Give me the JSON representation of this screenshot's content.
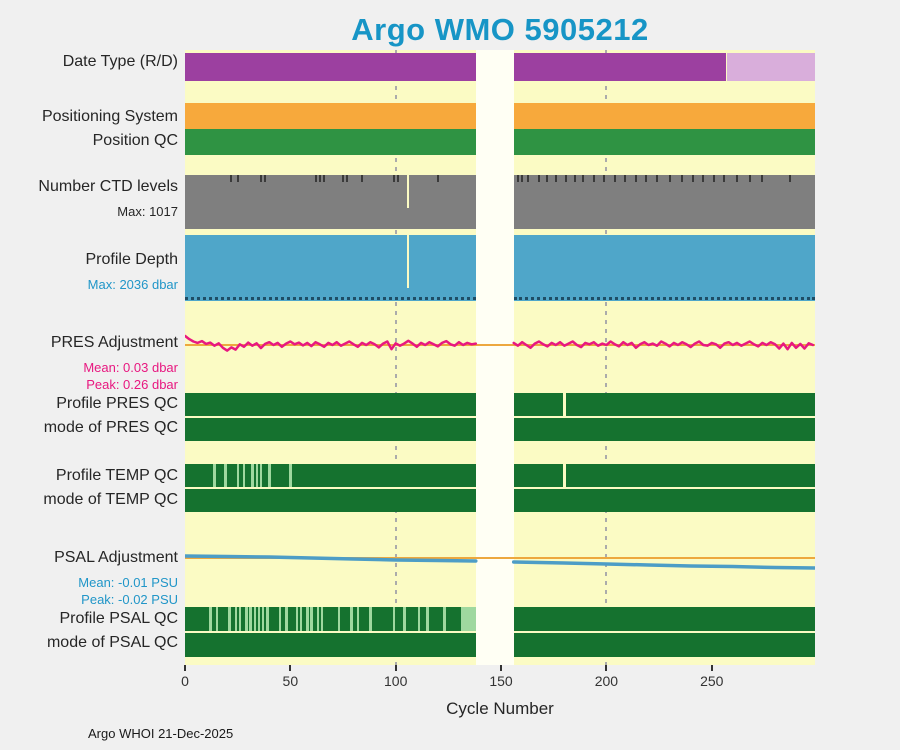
{
  "title": "Argo WMO 5905212",
  "footer": "Argo WHOI 21-Dec-2025",
  "colors": {
    "title": "#1795c6",
    "background": "#f0f0f0",
    "plot_bg": "#fbfbc4",
    "gap_band": "#fffff4",
    "gridline": "#ababab",
    "purple": "#9c40a0",
    "purple_light": "#d9aedb",
    "orange": "#f7a93c",
    "green": "#2f9343",
    "dark_green": "#15722f",
    "light_green": "#9fd89f",
    "gray": "#7f7f7f",
    "blue": "#4fa6c9",
    "magenta": "#e81880",
    "ref_orange": "#eda83e",
    "psal_blue": "#4d9dc6",
    "sub_blue": "#2196c8",
    "level_tick": "#3a3a3a",
    "depth_dotted": "#1f4e66",
    "axis_tick": "#333333"
  },
  "axis": {
    "xlabel": "Cycle Number",
    "xlim": [
      0,
      299
    ],
    "ticks": [
      0,
      50,
      100,
      150,
      200,
      250
    ],
    "gridlines_x": [
      100,
      200
    ],
    "gap": {
      "start": 138,
      "end": 156
    }
  },
  "labels": {
    "date_type": {
      "text": "Date Type (R/D)"
    },
    "positioning_system": {
      "text": "Positioning System"
    },
    "position_qc": {
      "text": "Position QC"
    },
    "ctd_levels": {
      "text": "Number CTD levels",
      "sub": "Max: 1017"
    },
    "profile_depth": {
      "text": "Profile Depth",
      "sub": "Max: 2036 dbar"
    },
    "pres_adjustment": {
      "text": "PRES Adjustment",
      "mean": "Mean: 0.03 dbar",
      "peak": "Peak: 0.26 dbar"
    },
    "profile_pres_qc": {
      "text": "Profile PRES QC"
    },
    "mode_pres_qc": {
      "text": "mode of PRES QC"
    },
    "profile_temp_qc": {
      "text": "Profile TEMP QC"
    },
    "mode_temp_qc": {
      "text": "mode of TEMP QC"
    },
    "psal_adjustment": {
      "text": "PSAL Adjustment",
      "mean": "Mean: -0.01 PSU",
      "peak": "Peak: -0.02 PSU"
    },
    "profile_psal_qc": {
      "text": "Profile PSAL QC"
    },
    "mode_psal_qc": {
      "text": "mode of PSAL QC"
    }
  },
  "chart_data": [
    {
      "id": "date_type",
      "type": "bar",
      "segments": [
        {
          "start": 0,
          "end": 138,
          "color": "purple"
        },
        {
          "start": 156,
          "end": 257,
          "color": "purple"
        },
        {
          "start": 257,
          "end": 299,
          "color": "purple_light"
        }
      ]
    },
    {
      "id": "positioning_system",
      "type": "bar",
      "segments": [
        {
          "start": 0,
          "end": 138,
          "color": "orange"
        },
        {
          "start": 156,
          "end": 299,
          "color": "orange"
        }
      ]
    },
    {
      "id": "position_qc",
      "type": "bar",
      "segments": [
        {
          "start": 0,
          "end": 138,
          "color": "green"
        },
        {
          "start": 156,
          "end": 299,
          "color": "green"
        }
      ]
    },
    {
      "id": "ctd_levels",
      "type": "bar",
      "max_levels": 1017,
      "segments": [
        {
          "start": 0,
          "end": 138,
          "color": "gray"
        },
        {
          "start": 156,
          "end": 299,
          "color": "gray"
        }
      ],
      "level_ticks": [
        22,
        25,
        36,
        38,
        62,
        64,
        66,
        75,
        77,
        84,
        99,
        101,
        120,
        158,
        160,
        163,
        168,
        172,
        176,
        181,
        185,
        189,
        194,
        199,
        204,
        209,
        214,
        219,
        224,
        230,
        236,
        241,
        246,
        251,
        256,
        262,
        268,
        274,
        287
      ],
      "notches": [
        {
          "cycle": 106,
          "frac": 0.62
        }
      ]
    },
    {
      "id": "profile_depth",
      "type": "bar",
      "max_depth": "2036 dbar",
      "dotted_bottom": true,
      "segments": [
        {
          "start": 0,
          "end": 138,
          "color": "blue"
        },
        {
          "start": 156,
          "end": 299,
          "color": "blue"
        }
      ],
      "notches": [
        {
          "cycle": 106,
          "frac": 0.8
        }
      ]
    },
    {
      "id": "pres_adjustment",
      "type": "line",
      "units": "dbar",
      "mean": 0.03,
      "peak": 0.26,
      "color": "magenta",
      "ref_color": "ref_orange",
      "ref_value": 0,
      "series": [
        {
          "x0": 0,
          "dx": 2,
          "values": [
            0.26,
            0.17,
            0.1,
            0.06,
            0.11,
            0.03,
            0.07,
            -0.02,
            0.05,
            -0.08,
            -0.16,
            -0.07,
            -0.13,
            0.02,
            -0.05,
            0.07,
            -0.02,
            0.05,
            -0.09,
            0.03,
            0.08,
            0.0,
            0.06,
            -0.05,
            0.04,
            0.1,
            0.02,
            0.07,
            -0.01,
            0.06,
            -0.03,
            0.08,
            0.02,
            -0.05,
            0.06,
            0.0,
            0.08,
            -0.02,
            0.04,
            0.1,
            0.02,
            -0.05,
            0.06,
            0.0,
            0.08,
            0.02,
            -0.07,
            0.04,
            0.1,
            -0.12,
            0.05,
            -0.02,
            0.04,
            0.12,
            0.04,
            -0.05,
            0.06,
            0.0,
            0.08,
            0.02,
            -0.04,
            0.06,
            0.11,
            0.02,
            -0.02,
            0.08,
            0.0,
            0.06,
            0.02,
            0.04
          ]
        },
        {
          "x0": 156,
          "dx": 2,
          "values": [
            0.06,
            -0.02,
            0.08,
            0.0,
            -0.08,
            0.04,
            0.1,
            0.02,
            -0.04,
            0.06,
            0.0,
            0.08,
            -0.02,
            0.04,
            0.1,
            0.0,
            -0.06,
            0.06,
            0.02,
            0.08,
            -0.02,
            0.04,
            0.0,
            0.1,
            0.02,
            -0.04,
            0.08,
            0.0,
            0.06,
            -0.08,
            0.02,
            0.08,
            0.0,
            0.04,
            -0.02,
            0.1,
            0.04,
            -0.04,
            0.06,
            0.0,
            0.08,
            0.02,
            -0.06,
            0.04,
            0.1,
            0.0,
            -0.02,
            0.06,
            0.02,
            -0.08,
            0.04,
            0.08,
            0.0,
            0.06,
            -0.02,
            0.04,
            0.1,
            0.02,
            -0.04,
            0.06,
            0.0,
            0.08,
            0.02,
            -0.1,
            0.04,
            -0.12,
            0.06,
            -0.08,
            0.03,
            -0.1,
            0.05,
            0.0
          ]
        }
      ]
    },
    {
      "id": "profile_pres_qc",
      "type": "bar",
      "segments": [
        {
          "start": 0,
          "end": 138,
          "color": "dark_green"
        },
        {
          "start": 156,
          "end": 299,
          "color": "dark_green"
        }
      ],
      "gaps": [
        180
      ]
    },
    {
      "id": "mode_pres_qc",
      "type": "bar",
      "segments": [
        {
          "start": 0,
          "end": 138,
          "color": "dark_green"
        },
        {
          "start": 156,
          "end": 299,
          "color": "dark_green"
        }
      ]
    },
    {
      "id": "profile_temp_qc",
      "type": "bar",
      "segments": [
        {
          "start": 0,
          "end": 138,
          "color": "dark_green"
        },
        {
          "start": 156,
          "end": 299,
          "color": "dark_green"
        }
      ],
      "stripes": [
        14,
        19,
        25,
        28,
        32,
        34,
        36,
        40,
        50
      ],
      "stripe_color": "light_green",
      "gaps": [
        180
      ]
    },
    {
      "id": "mode_temp_qc",
      "type": "bar",
      "segments": [
        {
          "start": 0,
          "end": 138,
          "color": "dark_green"
        },
        {
          "start": 156,
          "end": 299,
          "color": "dark_green"
        }
      ]
    },
    {
      "id": "psal_adjustment",
      "type": "line",
      "units": "PSU",
      "mean": -0.01,
      "peak": -0.02,
      "color": "psal_blue",
      "ref_color": "ref_orange",
      "ref_value": 0,
      "series": [
        {
          "x": [
            0,
            20,
            40,
            60,
            80,
            100,
            120,
            138
          ],
          "y": [
            0.004,
            0.003,
            0.002,
            0.0,
            -0.002,
            -0.004,
            -0.005,
            -0.006
          ]
        },
        {
          "x": [
            156,
            180,
            200,
            220,
            240,
            260,
            280,
            299
          ],
          "y": [
            -0.008,
            -0.01,
            -0.012,
            -0.014,
            -0.016,
            -0.017,
            -0.019,
            -0.02
          ]
        }
      ]
    },
    {
      "id": "profile_psal_qc",
      "type": "bar",
      "segments": [
        {
          "start": 0,
          "end": 138,
          "color": "dark_green"
        },
        {
          "start": 156,
          "end": 299,
          "color": "dark_green"
        }
      ],
      "stripes": [
        12,
        15,
        21,
        24,
        26,
        29,
        31,
        33,
        35,
        37,
        39,
        45,
        48,
        53,
        55,
        58,
        60,
        63,
        65,
        73,
        79,
        82,
        88,
        99,
        104,
        111,
        115,
        123
      ],
      "stripe_color": "light_green",
      "blocks": [
        {
          "start": 131,
          "end": 138,
          "color": "light_green"
        }
      ]
    },
    {
      "id": "mode_psal_qc",
      "type": "bar",
      "segments": [
        {
          "start": 0,
          "end": 138,
          "color": "dark_green"
        },
        {
          "start": 156,
          "end": 299,
          "color": "dark_green"
        }
      ]
    }
  ]
}
